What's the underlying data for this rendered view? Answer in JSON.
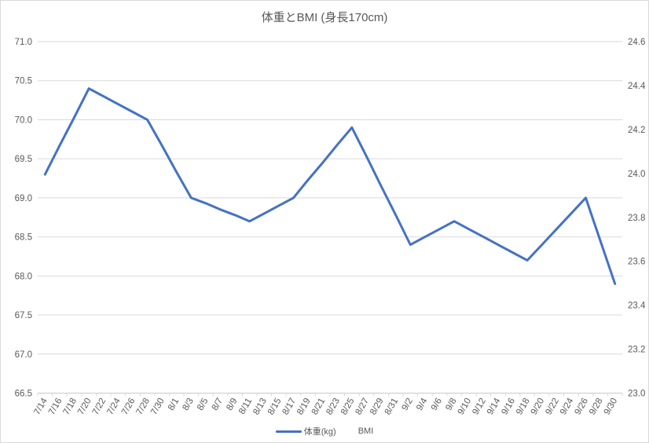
{
  "chart": {
    "title": "体重とBMI (身長170cm)",
    "legend": [
      "体重(kg)",
      "BMI"
    ]
  },
  "chart_data": {
    "type": "line",
    "title": "体重とBMI (身長170cm)",
    "categories": [
      "7/14",
      "7/16",
      "7/18",
      "7/20",
      "7/22",
      "7/24",
      "7/26",
      "7/28",
      "7/30",
      "8/1",
      "8/3",
      "8/5",
      "8/7",
      "8/9",
      "8/11",
      "8/13",
      "8/15",
      "8/17",
      "8/19",
      "8/21",
      "8/23",
      "8/25",
      "8/27",
      "8/29",
      "8/31",
      "9/2",
      "9/4",
      "9/6",
      "9/8",
      "9/10",
      "9/12",
      "9/14",
      "9/16",
      "9/18",
      "9/20",
      "9/22",
      "9/24",
      "9/26",
      "9/28",
      "9/30"
    ],
    "series": [
      {
        "name": "体重(kg)",
        "axis": "left",
        "color": "#4472C4",
        "visible": true,
        "values": [
          69.3,
          69.67,
          70.03,
          70.4,
          70.3,
          70.2,
          70.1,
          70.0,
          69.67,
          69.33,
          69.0,
          68.93,
          68.85,
          68.78,
          68.7,
          68.8,
          68.9,
          69.0,
          69.23,
          69.45,
          69.68,
          69.9,
          69.53,
          69.15,
          68.78,
          68.4,
          68.5,
          68.6,
          68.7,
          68.6,
          68.5,
          68.4,
          68.3,
          68.2,
          68.4,
          68.6,
          68.8,
          69.0,
          68.45,
          67.9
        ]
      },
      {
        "name": "BMI",
        "axis": "right",
        "visible": false,
        "values": []
      }
    ],
    "left_axis": {
      "ticks": [
        "71.0",
        "70.5",
        "70.0",
        "69.5",
        "69.0",
        "68.5",
        "68.0",
        "67.5",
        "67.0",
        "66.5"
      ],
      "ylim": [
        66.5,
        71.0
      ],
      "step": 0.5
    },
    "right_axis": {
      "ticks": [
        "24.6",
        "24.4",
        "24.2",
        "24.0",
        "23.8",
        "23.6",
        "23.4",
        "23.2",
        "23.0"
      ],
      "ylim": [
        23.0,
        24.6
      ],
      "step": 0.2
    },
    "grid": true,
    "legend_position": "bottom",
    "colors": {
      "line": "#4472C4",
      "gridline": "#D9D9D9",
      "axis_line": "#C9C9C9",
      "text": "#595959"
    }
  }
}
